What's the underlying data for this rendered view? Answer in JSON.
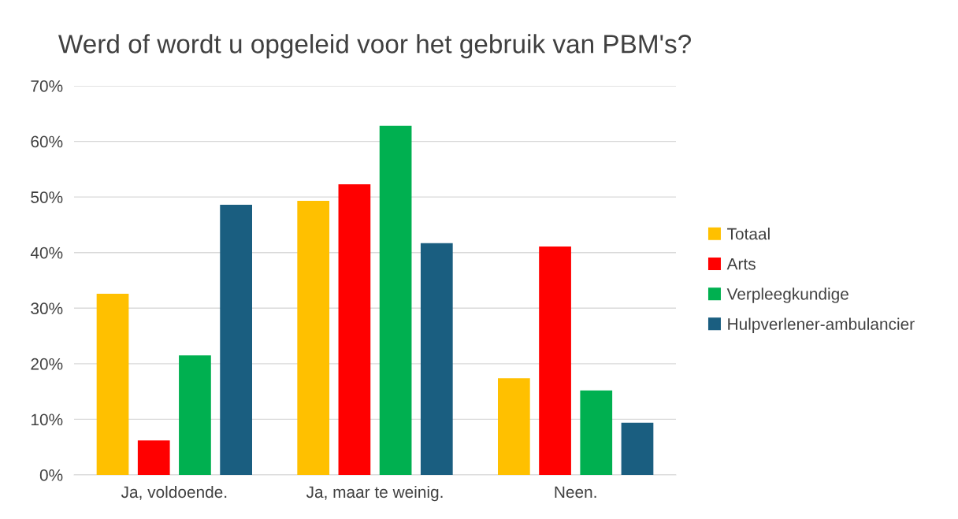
{
  "chart_data": {
    "type": "bar",
    "title": "Werd of wordt u opgeleid voor het gebruik van PBM's?",
    "categories": [
      "Ja, voldoende.",
      "Ja, maar te weinig.",
      "Neen."
    ],
    "series": [
      {
        "name": "Totaal",
        "color": "#ffc000",
        "values": [
          32.6,
          49.3,
          17.4
        ]
      },
      {
        "name": "Arts",
        "color": "#ff0000",
        "values": [
          6.2,
          52.3,
          41.1
        ]
      },
      {
        "name": "Verpleegkundige",
        "color": "#00b050",
        "values": [
          21.5,
          62.8,
          15.2
        ]
      },
      {
        "name": "Hulpverlener-ambulancier",
        "color": "#1a5e80",
        "values": [
          48.6,
          41.7,
          9.4
        ]
      }
    ],
    "ylim": [
      0,
      70
    ],
    "yticks": [
      {
        "value": 0,
        "label": "0%"
      },
      {
        "value": 10,
        "label": "10%"
      },
      {
        "value": 20,
        "label": "20%"
      },
      {
        "value": 30,
        "label": "30%"
      },
      {
        "value": 40,
        "label": "40%"
      },
      {
        "value": 50,
        "label": "50%"
      },
      {
        "value": 60,
        "label": "60%"
      },
      {
        "value": 70,
        "label": "70%"
      }
    ],
    "grid": "y",
    "legend": "right"
  }
}
